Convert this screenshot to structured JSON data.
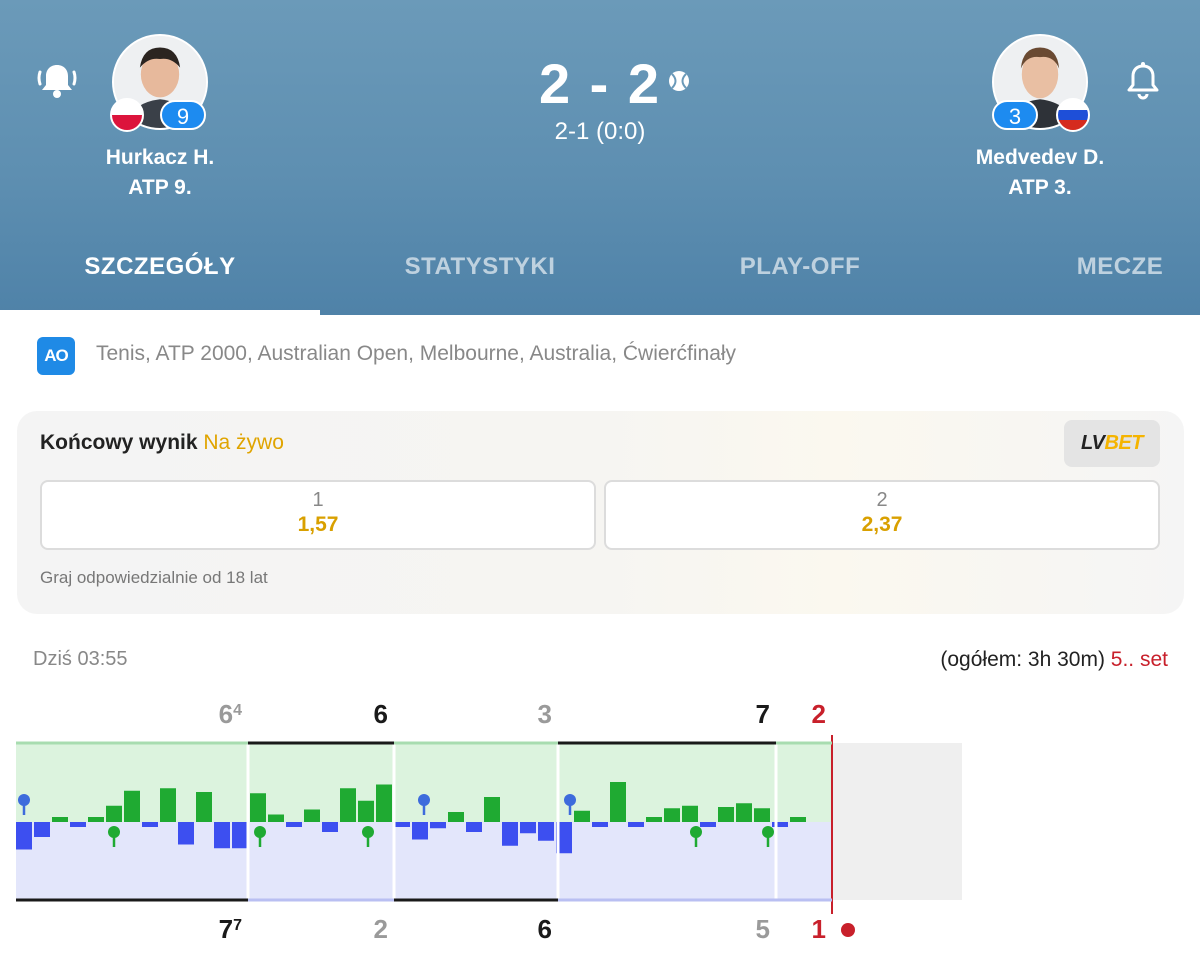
{
  "header": {
    "score": "2 - 2",
    "subscore": "2-1 (0:0)",
    "player_left": {
      "name": "Hurkacz H.",
      "rank_text": "ATP 9.",
      "badge": "9",
      "flag": "PL",
      "bell": "bell-active-icon"
    },
    "player_right": {
      "name": "Medvedev D.",
      "rank_text": "ATP 3.",
      "badge": "3",
      "flag": "RU",
      "bell": "bell-outline-icon"
    },
    "serving_indicator": "tennis-ball-icon"
  },
  "tabs": [
    {
      "label": "SZCZEGÓŁY",
      "active": true
    },
    {
      "label": "STATYSTYKI",
      "active": false
    },
    {
      "label": "PLAY-OFF",
      "active": false
    },
    {
      "label": "MECZE",
      "active": false
    }
  ],
  "tournament": {
    "logo": "AO",
    "text": "Tenis, ATP 2000, Australian Open, Melbourne, Australia, Ćwierćfinały"
  },
  "betting": {
    "title": "Końcowy wynik",
    "live_label": "Na żywo",
    "bookmaker": {
      "part1": "LV",
      "part2": "BET"
    },
    "odds": [
      {
        "label": "1",
        "value": "1,57"
      },
      {
        "label": "2",
        "value": "2,37"
      }
    ],
    "note": "Graj odpowiedzialnie od 18 lat"
  },
  "match_info": {
    "time": "Dziś 03:55",
    "duration": "(ogółem: 3h 30m)",
    "current_set": "5.. set"
  },
  "colors": {
    "header_top": "#6b9ab9",
    "header_bottom": "#4f82a8",
    "top_player_bar": "#1faa32",
    "bottom_player_bar": "#3d4ff0",
    "top_zone": "#dcf3de",
    "bottom_zone": "#e3e6fb",
    "current_set_red": "#c8202b",
    "odds_gold": "#d9a000"
  },
  "chart_data": {
    "type": "bar",
    "title": "",
    "sets": [
      {
        "top": "6",
        "top_sup": "4",
        "bottom": "7",
        "bottom_sup": "7",
        "winner": "bottom"
      },
      {
        "top": "6",
        "top_sup": "",
        "bottom": "2",
        "bottom_sup": "",
        "winner": "top"
      },
      {
        "top": "3",
        "top_sup": "",
        "bottom": "6",
        "bottom_sup": "",
        "winner": "bottom"
      },
      {
        "top": "7",
        "top_sup": "",
        "bottom": "5",
        "bottom_sup": "",
        "winner": "top"
      },
      {
        "top": "2",
        "top_sup": "",
        "bottom": "1",
        "bottom_sup": "",
        "winner": "current"
      }
    ],
    "series": [
      {
        "values": [
          -1.1,
          -0.6,
          0.2,
          -0.2,
          0.2,
          0.65,
          1.25,
          -0.2,
          1.35,
          -0.9,
          1.2,
          -1.05,
          -1.05,
          1.15,
          0.3,
          -0.2,
          0.5,
          -0.4,
          1.35,
          0.85,
          1.5,
          -0.2,
          -0.7,
          -0.25,
          0.4,
          -0.4,
          1.0,
          -0.95,
          -0.45,
          -0.75,
          -1.25,
          0.45,
          -0.2,
          1.6,
          -0.2,
          0.2,
          0.55,
          0.65,
          -0.2,
          0.6,
          0.75,
          0.55,
          -0.2,
          0.2
        ]
      }
    ],
    "ylim": [
      -1.8,
      1.8
    ],
    "legend": "none"
  }
}
